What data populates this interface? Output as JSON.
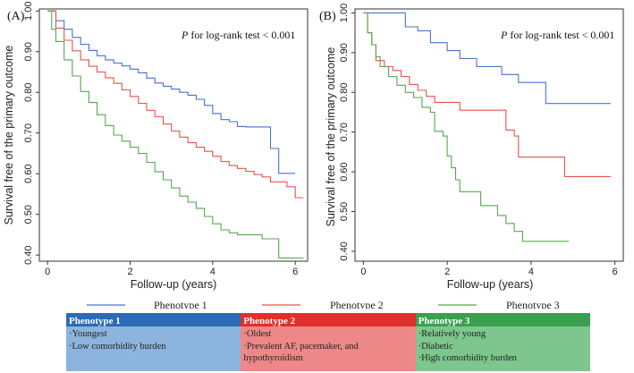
{
  "colors": {
    "phenotype1": "#4a72c8",
    "phenotype2": "#e8534a",
    "phenotype3": "#57a84f",
    "header1": "#2b6bb5",
    "header2": "#e0302b",
    "header3": "#3aa050",
    "body1": "#8db4dc",
    "body2": "#ee8888",
    "body3": "#7dc68d"
  },
  "legend": [
    "Phenotype 1",
    "Phenotype 2",
    "Phenotype 3"
  ],
  "chart_data": [
    {
      "type": "line",
      "panel_label": "(A)",
      "annotation_italic": "P",
      "annotation_rest": " for log-rank test < 0.001",
      "xlabel": "Follow-up (years)",
      "ylabel": "Survival free of the primary outcome",
      "xlim": [
        -0.2,
        6.3
      ],
      "ylim": [
        0.385,
        1.005
      ],
      "xticks": [
        0,
        2,
        4,
        6
      ],
      "xtick_labels": [
        "0",
        "2",
        "4",
        "6"
      ],
      "yticks": [
        0.4,
        0.5,
        0.6,
        0.7,
        0.8,
        0.9,
        1.0
      ],
      "ytick_labels": [
        "0.40",
        "0.50",
        "0.60",
        "0.70",
        "0.80",
        "0.90",
        "1.00"
      ],
      "series": [
        {
          "name": "Phenotype 1",
          "x": [
            0,
            0.2,
            0.4,
            0.6,
            0.8,
            1.0,
            1.2,
            1.4,
            1.6,
            1.8,
            2.0,
            2.2,
            2.4,
            2.6,
            2.8,
            3.0,
            3.2,
            3.4,
            3.6,
            3.8,
            4.0,
            4.2,
            4.4,
            4.6,
            4.8,
            5.0,
            5.2,
            5.4,
            5.5,
            5.6,
            5.8,
            6.0
          ],
          "y": [
            1.0,
            0.976,
            0.955,
            0.935,
            0.918,
            0.903,
            0.89,
            0.88,
            0.872,
            0.865,
            0.857,
            0.848,
            0.835,
            0.823,
            0.815,
            0.808,
            0.8,
            0.793,
            0.783,
            0.768,
            0.748,
            0.733,
            0.728,
            0.716,
            0.715,
            0.715,
            0.715,
            0.662,
            0.662,
            0.601,
            0.601,
            0.601
          ]
        },
        {
          "name": "Phenotype 2",
          "x": [
            0,
            0.2,
            0.4,
            0.6,
            0.8,
            1.0,
            1.2,
            1.4,
            1.6,
            1.8,
            2.0,
            2.2,
            2.4,
            2.6,
            2.8,
            3.0,
            3.2,
            3.4,
            3.6,
            3.8,
            4.0,
            4.2,
            4.4,
            4.6,
            4.8,
            5.0,
            5.2,
            5.4,
            5.6,
            5.8,
            6.0,
            6.2
          ],
          "y": [
            1.0,
            0.958,
            0.928,
            0.902,
            0.88,
            0.864,
            0.85,
            0.836,
            0.822,
            0.806,
            0.79,
            0.773,
            0.756,
            0.74,
            0.722,
            0.705,
            0.69,
            0.676,
            0.665,
            0.655,
            0.643,
            0.63,
            0.62,
            0.613,
            0.606,
            0.598,
            0.592,
            0.58,
            0.58,
            0.568,
            0.541,
            0.541
          ]
        },
        {
          "name": "Phenotype 3",
          "x": [
            0,
            0.1,
            0.2,
            0.4,
            0.6,
            0.8,
            1.0,
            1.2,
            1.4,
            1.6,
            1.8,
            2.0,
            2.2,
            2.4,
            2.6,
            2.8,
            3.0,
            3.2,
            3.4,
            3.6,
            3.8,
            4.0,
            4.2,
            4.4,
            4.6,
            4.8,
            5.0,
            5.2,
            5.4,
            5.6,
            5.8,
            6.0,
            6.2
          ],
          "y": [
            1.0,
            0.955,
            0.925,
            0.88,
            0.84,
            0.802,
            0.775,
            0.745,
            0.718,
            0.695,
            0.68,
            0.665,
            0.65,
            0.628,
            0.605,
            0.585,
            0.565,
            0.545,
            0.53,
            0.515,
            0.495,
            0.477,
            0.462,
            0.455,
            0.45,
            0.45,
            0.45,
            0.44,
            0.44,
            0.393,
            0.393,
            0.393,
            0.393
          ]
        }
      ]
    },
    {
      "type": "line",
      "panel_label": "(B)",
      "annotation_italic": "P",
      "annotation_rest": " for log-rank test < 0.001",
      "xlabel": "Follow-up (years)",
      "ylabel": "Survival free of the primary outcome",
      "xlim": [
        -0.2,
        6.2
      ],
      "ylim": [
        0.375,
        1.01
      ],
      "xticks": [
        0,
        2,
        4,
        6
      ],
      "xtick_labels": [
        "0",
        "2",
        "4",
        "6"
      ],
      "yticks": [
        0.4,
        0.5,
        0.6,
        0.7,
        0.8,
        0.9,
        1.0
      ],
      "ytick_labels": [
        "0.40",
        "0.50",
        "0.60",
        "0.70",
        "0.80",
        "0.90",
        "1.00"
      ],
      "series": [
        {
          "name": "Phenotype 1",
          "x": [
            0,
            0.8,
            1.0,
            1.3,
            1.6,
            2.0,
            2.3,
            2.7,
            3.0,
            3.3,
            3.7,
            4.0,
            4.35,
            4.6,
            5.0,
            5.9
          ],
          "y": [
            1.0,
            1.0,
            0.965,
            0.955,
            0.925,
            0.905,
            0.885,
            0.865,
            0.865,
            0.845,
            0.825,
            0.825,
            0.772,
            0.772,
            0.772,
            0.772
          ]
        },
        {
          "name": "Phenotype 2",
          "x": [
            0,
            0.1,
            0.2,
            0.3,
            0.5,
            0.7,
            0.9,
            1.1,
            1.3,
            1.5,
            1.7,
            2.0,
            2.3,
            2.7,
            3.0,
            3.3,
            3.4,
            3.6,
            3.7,
            4.2,
            4.7,
            4.8,
            5.9
          ],
          "y": [
            1.0,
            0.95,
            0.92,
            0.88,
            0.865,
            0.855,
            0.84,
            0.82,
            0.805,
            0.79,
            0.775,
            0.775,
            0.755,
            0.755,
            0.755,
            0.755,
            0.705,
            0.69,
            0.637,
            0.637,
            0.637,
            0.588,
            0.588
          ]
        },
        {
          "name": "Phenotype 3",
          "x": [
            0,
            0.1,
            0.2,
            0.3,
            0.4,
            0.6,
            0.8,
            1.0,
            1.2,
            1.4,
            1.6,
            1.7,
            1.9,
            2.0,
            2.1,
            2.2,
            2.3,
            2.5,
            2.8,
            3.0,
            3.2,
            3.4,
            3.6,
            3.8,
            4.2,
            4.9
          ],
          "y": [
            1.0,
            0.95,
            0.92,
            0.89,
            0.865,
            0.84,
            0.818,
            0.8,
            0.787,
            0.762,
            0.75,
            0.702,
            0.69,
            0.64,
            0.61,
            0.58,
            0.55,
            0.55,
            0.515,
            0.515,
            0.49,
            0.47,
            0.45,
            0.425,
            0.425,
            0.425
          ]
        }
      ]
    }
  ],
  "table": [
    {
      "header": "Phenotype 1",
      "lines": [
        "·Youngest",
        "·Low comorbidity burden"
      ]
    },
    {
      "header": "Phenotype 2",
      "lines": [
        "·Oldest",
        "·Prevalent AF, pacemaker, and",
        "hypothyroidism"
      ]
    },
    {
      "header": "Phenotype 3",
      "lines": [
        "·Relatively young",
        "·Diabetic",
        "·High comorbidity burden"
      ]
    }
  ]
}
